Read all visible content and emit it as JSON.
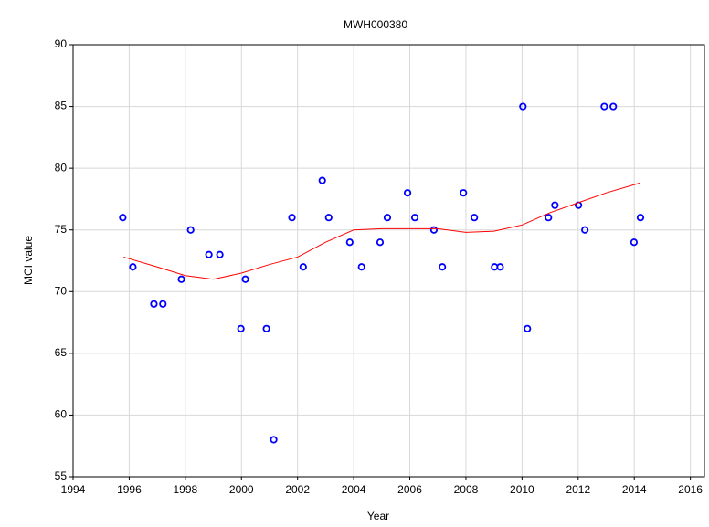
{
  "chart_data": {
    "type": "scatter",
    "title": "MWH000380",
    "x_label": "Year",
    "y_label": "MCI value",
    "xlim": [
      1994,
      2016.5
    ],
    "xticks": [
      1994,
      1996,
      1998,
      2000,
      2002,
      2004,
      2006,
      2008,
      2010,
      2012,
      2014,
      2016
    ],
    "ylim": [
      55,
      90
    ],
    "yticks": [
      55,
      60,
      65,
      70,
      75,
      80,
      85,
      90
    ],
    "grid": true,
    "series": [
      {
        "type": "scatter",
        "color": "#0000ff",
        "x": [
          1995.77,
          1996.13,
          1996.88,
          1997.2,
          1997.86,
          1998.19,
          1998.84,
          1999.23,
          1999.98,
          2000.14,
          2000.89,
          2001.15,
          2001.8,
          2002.2,
          2002.88,
          2003.11,
          2003.86,
          2004.28,
          2004.94,
          2005.2,
          2005.92,
          2006.18,
          2006.86,
          2007.16,
          2007.91,
          2008.3,
          2009.02,
          2009.22,
          2010.03,
          2010.19,
          2010.94,
          2011.17,
          2012.01,
          2012.24,
          2012.93,
          2013.25,
          2013.99,
          2014.22
        ],
        "values": [
          76,
          72,
          69,
          69,
          71,
          75,
          73,
          73,
          67,
          71,
          67,
          58,
          76,
          72,
          79,
          76,
          74,
          72,
          74,
          76,
          78,
          76,
          75,
          72,
          78,
          76,
          72,
          72,
          85,
          67,
          76,
          77,
          77,
          75,
          85,
          85,
          74,
          76
        ]
      },
      {
        "type": "line",
        "color": "#ff0000",
        "x": [
          1995.8,
          1997,
          1998,
          1999,
          2000,
          2001,
          2002,
          2003,
          2004,
          2005,
          2006,
          2007,
          2008,
          2009,
          2010,
          2011,
          2012,
          2013,
          2014.2
        ],
        "values": [
          72.8,
          72,
          71.3,
          71,
          71.5,
          72.2,
          72.8,
          74,
          75,
          75.1,
          75.1,
          75.1,
          74.8,
          74.9,
          75.4,
          76.4,
          77.2,
          78,
          78.8
        ]
      }
    ]
  }
}
